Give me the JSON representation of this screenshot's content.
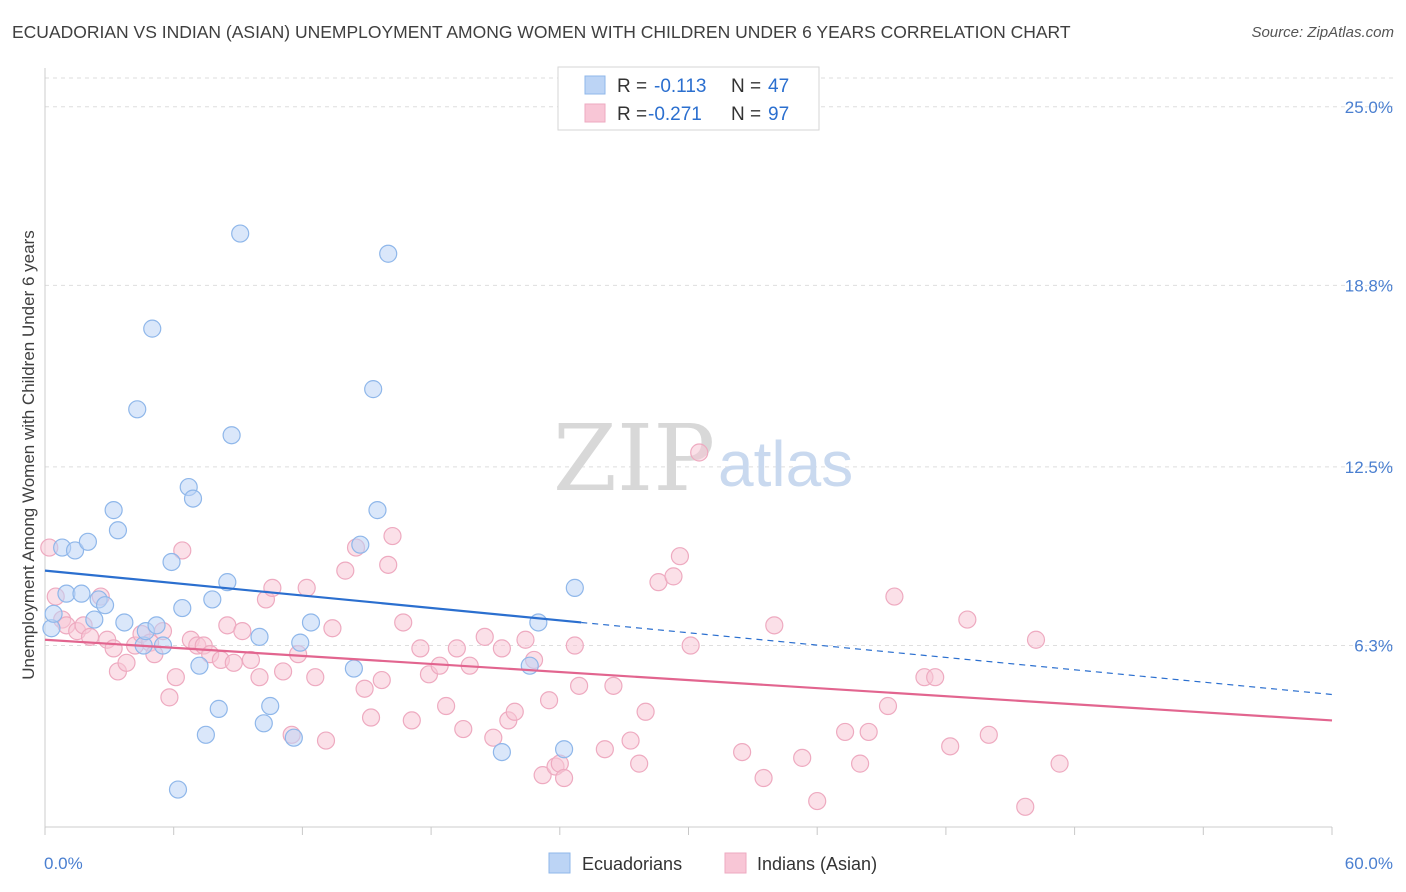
{
  "header": {
    "title": "ECUADORIAN VS INDIAN (ASIAN) UNEMPLOYMENT AMONG WOMEN WITH CHILDREN UNDER 6 YEARS CORRELATION CHART",
    "source": "Source: ZipAtlas.com"
  },
  "watermark": {
    "zip": "ZIP",
    "atlas": "atlas"
  },
  "stats_box": {
    "rows": [
      {
        "r_label": "R =",
        "r_value": "-0.113",
        "n_label": "N =",
        "n_value": "47"
      },
      {
        "r_label": "R =",
        "r_value": "-0.271",
        "n_label": "N =",
        "n_value": "97"
      }
    ]
  },
  "chart_data": {
    "type": "scatter",
    "title": "ECUADORIAN VS INDIAN (ASIAN) UNEMPLOYMENT AMONG WOMEN WITH CHILDREN UNDER 6 YEARS CORRELATION CHART",
    "xlabel": "",
    "ylabel": "Unemployment Among Women with Children Under 6 years",
    "xlim": [
      0,
      60
    ],
    "ylim": [
      0,
      26
    ],
    "x_tick_labels": [
      "0.0%",
      "60.0%"
    ],
    "y_ticks": [
      6.3,
      12.5,
      18.8,
      25.0
    ],
    "y_tick_labels": [
      "6.3%",
      "12.5%",
      "18.8%",
      "25.0%"
    ],
    "grid": true,
    "legend_position": "bottom",
    "series": [
      {
        "name": "Ecuadorians",
        "color": "#8fb7ea",
        "fill": "#bcd4f5",
        "line_color": "#2b6fcf",
        "trend": {
          "x0": 0,
          "y0": 8.9,
          "x1": 25,
          "y1": 7.1,
          "dashed_to_x": 60,
          "dashed_to_y": 4.6
        },
        "points": [
          [
            0.3,
            6.9
          ],
          [
            0.4,
            7.4
          ],
          [
            0.8,
            9.7
          ],
          [
            1.0,
            8.1
          ],
          [
            1.4,
            9.6
          ],
          [
            1.7,
            8.1
          ],
          [
            2.0,
            9.9
          ],
          [
            2.3,
            7.2
          ],
          [
            2.5,
            7.9
          ],
          [
            2.8,
            7.7
          ],
          [
            3.2,
            11.0
          ],
          [
            3.4,
            10.3
          ],
          [
            3.7,
            7.1
          ],
          [
            4.3,
            14.5
          ],
          [
            4.6,
            6.3
          ],
          [
            4.7,
            6.8
          ],
          [
            5.0,
            17.3
          ],
          [
            5.2,
            7.0
          ],
          [
            5.5,
            6.3
          ],
          [
            5.9,
            9.2
          ],
          [
            6.2,
            1.3
          ],
          [
            6.4,
            7.6
          ],
          [
            6.7,
            11.8
          ],
          [
            6.9,
            11.4
          ],
          [
            7.2,
            5.6
          ],
          [
            7.5,
            3.2
          ],
          [
            7.8,
            7.9
          ],
          [
            8.1,
            4.1
          ],
          [
            8.5,
            8.5
          ],
          [
            8.7,
            13.6
          ],
          [
            9.1,
            20.6
          ],
          [
            10.0,
            6.6
          ],
          [
            10.2,
            3.6
          ],
          [
            10.5,
            4.2
          ],
          [
            11.6,
            3.1
          ],
          [
            11.9,
            6.4
          ],
          [
            12.4,
            7.1
          ],
          [
            14.4,
            5.5
          ],
          [
            14.7,
            9.8
          ],
          [
            15.3,
            15.2
          ],
          [
            15.5,
            11.0
          ],
          [
            16.0,
            19.9
          ],
          [
            21.3,
            2.6
          ],
          [
            22.6,
            5.6
          ],
          [
            23.0,
            7.1
          ],
          [
            24.2,
            2.7
          ],
          [
            24.7,
            8.3
          ]
        ]
      },
      {
        "name": "Indians (Asian)",
        "color": "#eeaac0",
        "fill": "#f8c6d6",
        "line_color": "#e2658f",
        "trend": {
          "x0": 0,
          "y0": 6.5,
          "x1": 60,
          "y1": 3.7
        },
        "points": [
          [
            0.2,
            9.7
          ],
          [
            0.5,
            8.0
          ],
          [
            0.8,
            7.2
          ],
          [
            1.0,
            7.0
          ],
          [
            1.5,
            6.8
          ],
          [
            1.8,
            7.0
          ],
          [
            2.1,
            6.6
          ],
          [
            2.6,
            8.0
          ],
          [
            2.9,
            6.5
          ],
          [
            3.2,
            6.2
          ],
          [
            3.4,
            5.4
          ],
          [
            3.8,
            5.7
          ],
          [
            4.2,
            6.3
          ],
          [
            4.5,
            6.7
          ],
          [
            4.9,
            6.4
          ],
          [
            5.1,
            6.0
          ],
          [
            5.5,
            6.8
          ],
          [
            5.8,
            4.5
          ],
          [
            6.1,
            5.2
          ],
          [
            6.4,
            9.6
          ],
          [
            6.8,
            6.5
          ],
          [
            7.1,
            6.3
          ],
          [
            7.4,
            6.3
          ],
          [
            7.7,
            6.0
          ],
          [
            8.2,
            5.8
          ],
          [
            8.5,
            7.0
          ],
          [
            8.8,
            5.7
          ],
          [
            9.2,
            6.8
          ],
          [
            9.6,
            5.8
          ],
          [
            10.0,
            5.2
          ],
          [
            10.3,
            7.9
          ],
          [
            10.6,
            8.3
          ],
          [
            11.1,
            5.4
          ],
          [
            11.5,
            3.2
          ],
          [
            11.8,
            6.0
          ],
          [
            12.2,
            8.3
          ],
          [
            12.6,
            5.2
          ],
          [
            13.1,
            3.0
          ],
          [
            13.4,
            6.9
          ],
          [
            14.0,
            8.9
          ],
          [
            14.5,
            9.7
          ],
          [
            14.9,
            4.8
          ],
          [
            15.2,
            3.8
          ],
          [
            15.7,
            5.1
          ],
          [
            16.0,
            9.1
          ],
          [
            16.2,
            10.1
          ],
          [
            16.7,
            7.1
          ],
          [
            17.1,
            3.7
          ],
          [
            17.5,
            6.2
          ],
          [
            17.9,
            5.3
          ],
          [
            18.4,
            5.6
          ],
          [
            18.7,
            4.2
          ],
          [
            19.2,
            6.2
          ],
          [
            19.5,
            3.4
          ],
          [
            19.8,
            5.6
          ],
          [
            20.5,
            6.6
          ],
          [
            20.9,
            3.1
          ],
          [
            21.3,
            6.2
          ],
          [
            21.6,
            3.7
          ],
          [
            21.9,
            4.0
          ],
          [
            22.4,
            6.5
          ],
          [
            22.8,
            5.8
          ],
          [
            23.2,
            1.8
          ],
          [
            23.5,
            4.4
          ],
          [
            23.8,
            2.1
          ],
          [
            24.0,
            2.2
          ],
          [
            24.2,
            1.7
          ],
          [
            24.7,
            6.3
          ],
          [
            24.9,
            4.9
          ],
          [
            26.1,
            2.7
          ],
          [
            26.5,
            4.9
          ],
          [
            27.3,
            3.0
          ],
          [
            27.7,
            2.2
          ],
          [
            28.0,
            4.0
          ],
          [
            28.6,
            8.5
          ],
          [
            29.3,
            8.7
          ],
          [
            29.6,
            9.4
          ],
          [
            30.1,
            6.3
          ],
          [
            30.5,
            13.0
          ],
          [
            32.5,
            2.6
          ],
          [
            33.5,
            1.7
          ],
          [
            34.0,
            7.0
          ],
          [
            35.3,
            2.4
          ],
          [
            36.0,
            0.9
          ],
          [
            37.3,
            3.3
          ],
          [
            38.0,
            2.2
          ],
          [
            38.4,
            3.3
          ],
          [
            39.3,
            4.2
          ],
          [
            39.6,
            8.0
          ],
          [
            41.0,
            5.2
          ],
          [
            41.5,
            5.2
          ],
          [
            42.2,
            2.8
          ],
          [
            43.0,
            7.2
          ],
          [
            44.0,
            3.2
          ],
          [
            45.7,
            0.7
          ],
          [
            46.2,
            6.5
          ],
          [
            47.3,
            2.2
          ]
        ]
      }
    ]
  },
  "legend": {
    "items": [
      {
        "label": "Ecuadorians"
      },
      {
        "label": "Indians (Asian)"
      }
    ]
  }
}
